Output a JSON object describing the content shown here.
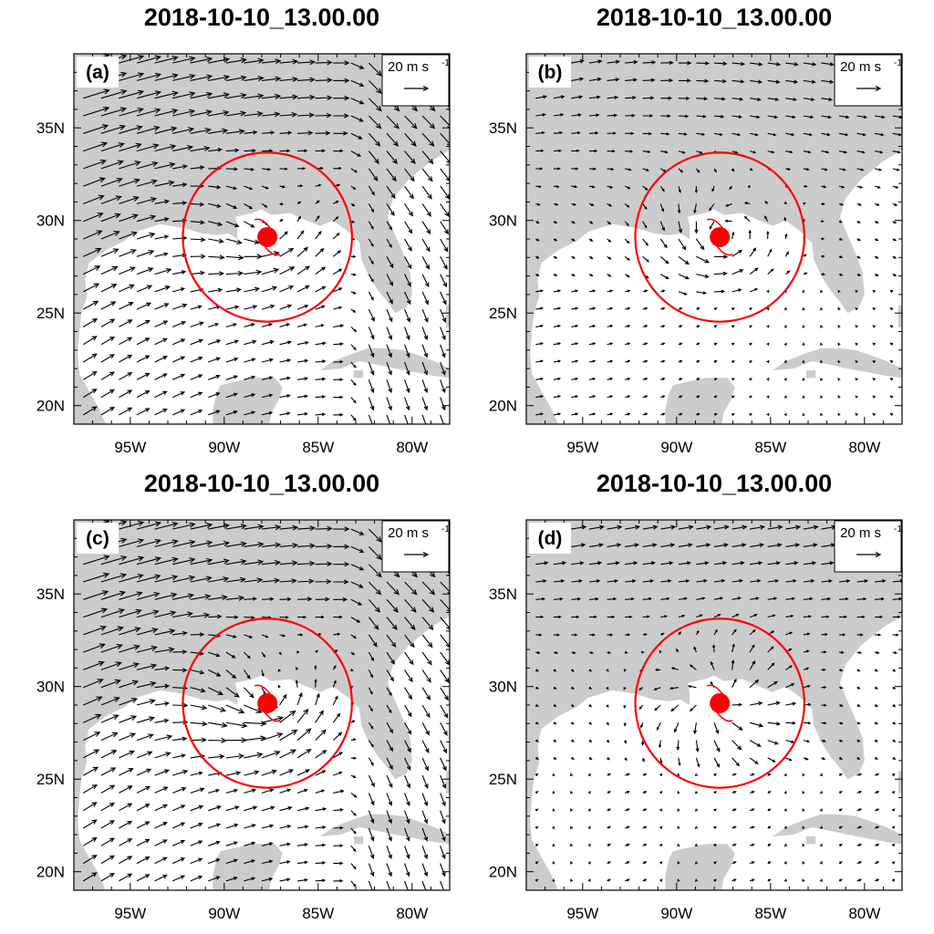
{
  "figure": {
    "lon_range": [
      -98,
      -78
    ],
    "lat_range": [
      19,
      39
    ],
    "land_color": "#cccccc",
    "ocean_color": "#ffffff",
    "storm_color": "#ff0000",
    "vector_color": "#000000",
    "storm_center": {
      "lon": -87.7,
      "lat": 29.1
    },
    "circle_radius_deg": 4.5,
    "x_ticks": [
      {
        "value": -95,
        "label": "95W"
      },
      {
        "value": -90,
        "label": "90W"
      },
      {
        "value": -85,
        "label": "85W"
      },
      {
        "value": -80,
        "label": "80W"
      }
    ],
    "y_ticks": [
      {
        "value": 20,
        "label": "20N"
      },
      {
        "value": 25,
        "label": "25N"
      },
      {
        "value": 30,
        "label": "30N"
      },
      {
        "value": 35,
        "label": "35N"
      }
    ],
    "reference_vector": {
      "magnitude": 20,
      "units": "m s",
      "exponent": "-1"
    }
  },
  "panels": [
    {
      "id": "a",
      "label": "(a)",
      "title": "2018-10-10_13.00.00",
      "pattern": "strong-westerly"
    },
    {
      "id": "b",
      "label": "(b)",
      "title": "2018-10-10_13.00.00",
      "pattern": "weak-cyclonic"
    },
    {
      "id": "c",
      "label": "(c)",
      "title": "2018-10-10_13.00.00",
      "pattern": "strong-inflow"
    },
    {
      "id": "d",
      "label": "(d)",
      "title": "2018-10-10_13.00.00",
      "pattern": "weak-outflow"
    }
  ]
}
